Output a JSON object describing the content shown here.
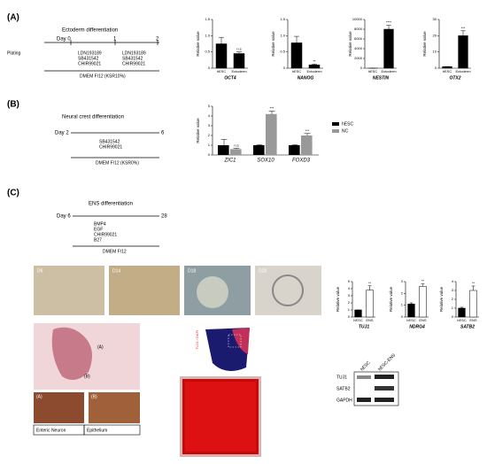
{
  "panels": {
    "a": {
      "label": "(A)",
      "title": "Ectoderm differentiation",
      "day": "Day 0",
      "d1": "1",
      "d2": "2",
      "plating": "Plating",
      "drugs1": [
        "LDN193189",
        "SB431542",
        "CHIR99021"
      ],
      "drugs2": [
        "LDN193189",
        "SB431542",
        "CHIR99021"
      ],
      "medium": "DMEM F/12 (KSR10%)"
    },
    "b": {
      "label": "(B)",
      "title": "Neural crest differentiation",
      "day": "Day 2",
      "end": "6",
      "drugs": [
        "SB431542",
        "CHIR99021"
      ],
      "medium": "DMEM F/12 (KSR0%)"
    },
    "c": {
      "label": "(C)",
      "title": "ENS differentiation",
      "day": "Day 6",
      "end": "28",
      "drugs": [
        "BMP4",
        "EGF",
        "CHIR99021",
        "B27"
      ],
      "medium": "DMEM F/12",
      "images": [
        "D6",
        "D14",
        "D18",
        "D28"
      ],
      "histo": [
        "(A)",
        "(B)"
      ],
      "small": [
        "(A)",
        "(B)"
      ],
      "captions": [
        "Enteric Neuron",
        "Epithelium"
      ],
      "stain": "TUJ1 / DAPI",
      "blot_lanes": [
        "hESC",
        "hESC-ENS"
      ],
      "blot_rows": [
        "TUJ1",
        "SATB2",
        "GAPDH"
      ]
    }
  },
  "chart_data": [
    {
      "type": "bar",
      "title": "OCT4",
      "ylabel": "Relative value",
      "categories": [
        "hESC",
        "Ectoderm"
      ],
      "values": [
        0.75,
        0.45
      ],
      "errors": [
        0.2,
        0.05
      ],
      "colors": [
        "#000000",
        "#000000"
      ],
      "annotation": "n.s",
      "ylim": [
        0,
        1.5
      ],
      "yticks": [
        0,
        0.5,
        {
          "value": 1,
          "label": "1.0"
        },
        1.5
      ]
    },
    {
      "type": "bar",
      "title": "NANOG",
      "ylabel": "Relative value",
      "categories": [
        "hESC",
        "Ectoderm"
      ],
      "values": [
        0.78,
        0.1
      ],
      "errors": [
        0.2,
        0.03
      ],
      "colors": [
        "#000000",
        "#000000"
      ],
      "annotation": "**",
      "ylim": [
        0,
        1.5
      ],
      "yticks": [
        0,
        0.5,
        {
          "value": 1,
          "label": "1.0"
        },
        1.5
      ]
    },
    {
      "type": "bar",
      "title": "NESTIN",
      "ylabel": "Relative value",
      "categories": [
        "hESC",
        "Ectoderm"
      ],
      "values": [
        1,
        8000
      ],
      "errors": [
        0,
        800
      ],
      "colors": [
        "#000000",
        "#000000"
      ],
      "annotation": "****",
      "ylim": [
        0,
        10000
      ],
      "yticks": [
        0,
        2000,
        4000,
        6000,
        8000,
        10000
      ]
    },
    {
      "type": "bar",
      "title": "OTX2",
      "ylabel": "Relative value",
      "categories": [
        "hESC",
        "Ectoderm"
      ],
      "values": [
        1,
        20
      ],
      "errors": [
        0,
        3
      ],
      "colors": [
        "#000000",
        "#000000"
      ],
      "annotation": "***",
      "ylim": [
        0,
        30
      ],
      "yticks": [
        0,
        10,
        20,
        30
      ]
    },
    {
      "type": "grouped",
      "ylabel": "Relative value",
      "categories": [
        "ZIC1",
        "SOX10",
        "FOXD3"
      ],
      "series": [
        {
          "name": "hESC",
          "color": "#000000",
          "values": [
            1,
            1,
            1
          ],
          "errors": [
            0.6,
            0.05,
            0.05
          ]
        },
        {
          "name": "NC",
          "color": "#999999",
          "values": [
            0.6,
            4.2,
            2.0
          ],
          "errors": [
            0.1,
            0.3,
            0.2
          ]
        }
      ],
      "annotations": [
        "n.s",
        "***",
        "***"
      ],
      "ylim": [
        0,
        5
      ],
      "yticks": [
        0,
        1,
        2,
        3,
        4,
        5
      ]
    },
    {
      "type": "bar",
      "title": "TUJ1",
      "ylabel": "Relative value",
      "categories": [
        "hESC",
        "ENS"
      ],
      "values": [
        1,
        3.8
      ],
      "errors": [
        0,
        0.6
      ],
      "colors": [
        "#000000",
        "#ffffff"
      ],
      "annotation": "**",
      "ylim": [
        0,
        5
      ],
      "yticks": [
        0,
        1,
        2,
        3,
        4,
        5
      ]
    },
    {
      "type": "bar",
      "title": "NDRG4",
      "ylabel": "Relative value",
      "categories": [
        "hESC",
        "ENS"
      ],
      "values": [
        1.1,
        2.6
      ],
      "errors": [
        0.1,
        0.2
      ],
      "colors": [
        "#000000",
        "#ffffff"
      ],
      "annotation": "**",
      "ylim": [
        0,
        3
      ],
      "yticks": [
        0,
        1,
        2,
        3
      ]
    },
    {
      "type": "bar",
      "title": "SATB2",
      "ylabel": "Relative value",
      "categories": [
        "hESC",
        "ENS"
      ],
      "values": [
        1,
        3
      ],
      "errors": [
        0.1,
        0.5
      ],
      "colors": [
        "#000000",
        "#ffffff"
      ],
      "annotation": "**",
      "ylim": [
        0,
        4
      ],
      "yticks": [
        0,
        1,
        2,
        3,
        4
      ]
    }
  ]
}
